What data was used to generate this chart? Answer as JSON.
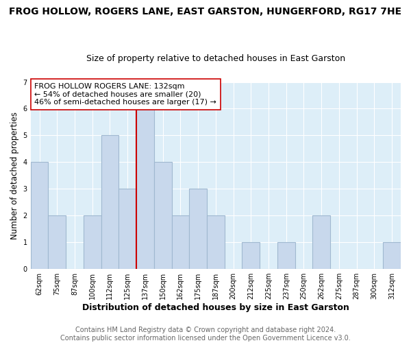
{
  "title": "FROG HOLLOW, ROGERS LANE, EAST GARSTON, HUNGERFORD, RG17 7HE",
  "subtitle": "Size of property relative to detached houses in East Garston",
  "xlabel": "Distribution of detached houses by size in East Garston",
  "ylabel": "Number of detached properties",
  "bin_labels": [
    "62sqm",
    "75sqm",
    "87sqm",
    "100sqm",
    "112sqm",
    "125sqm",
    "137sqm",
    "150sqm",
    "162sqm",
    "175sqm",
    "187sqm",
    "200sqm",
    "212sqm",
    "225sqm",
    "237sqm",
    "250sqm",
    "262sqm",
    "275sqm",
    "287sqm",
    "300sqm",
    "312sqm"
  ],
  "bar_heights": [
    4,
    2,
    0,
    2,
    5,
    3,
    6,
    4,
    2,
    3,
    2,
    0,
    1,
    0,
    1,
    0,
    2,
    0,
    0,
    0,
    1
  ],
  "bar_color": "#c8d8ec",
  "bar_edge_color": "#a0b8d0",
  "vline_x_index": 6,
  "vline_color": "#cc0000",
  "ylim": [
    0,
    7
  ],
  "yticks": [
    0,
    1,
    2,
    3,
    4,
    5,
    6,
    7
  ],
  "annotation_text": "FROG HOLLOW ROGERS LANE: 132sqm\n← 54% of detached houses are smaller (20)\n46% of semi-detached houses are larger (17) →",
  "annotation_box_color": "#ffffff",
  "annotation_box_edge": "#cc0000",
  "footnote": "Contains HM Land Registry data © Crown copyright and database right 2024.\nContains public sector information licensed under the Open Government Licence v3.0.",
  "plot_bg_color": "#ddeef8",
  "fig_bg_color": "#ffffff",
  "title_fontsize": 10,
  "subtitle_fontsize": 9,
  "xlabel_fontsize": 9,
  "ylabel_fontsize": 8.5,
  "tick_fontsize": 7,
  "annotation_fontsize": 8,
  "footnote_fontsize": 7
}
